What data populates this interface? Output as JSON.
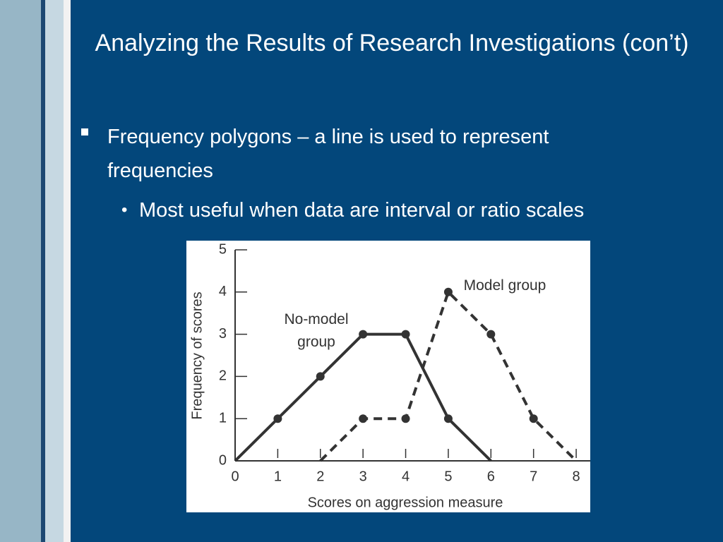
{
  "slide": {
    "title": "Analyzing the Results of Research Investigations (con’t)",
    "bullets": [
      {
        "text": "Frequency polygons – a line is used to represent frequencies",
        "sub": [
          "Most useful when data are interval or ratio scales"
        ]
      }
    ]
  },
  "chart_data": {
    "type": "line",
    "x_label": "Scores on aggression measure",
    "y_label": "Frequency of scores",
    "x": [
      0,
      1,
      2,
      3,
      4,
      5,
      6,
      7,
      8
    ],
    "series": [
      {
        "name": "No-model group",
        "color": "#333333",
        "style": "solid",
        "values": [
          0,
          1,
          2,
          3,
          3,
          1,
          0,
          null,
          null
        ]
      },
      {
        "name": "Model group",
        "color": "#333333",
        "style": "dashed",
        "values": [
          null,
          null,
          0,
          1,
          1,
          4,
          3,
          1,
          0
        ]
      }
    ],
    "xlim": [
      0,
      8.33
    ],
    "ylim": [
      0,
      5
    ],
    "xticks": [
      0,
      1,
      2,
      3,
      4,
      5,
      6,
      7,
      8
    ],
    "yticks": [
      0,
      1,
      2,
      3,
      4,
      5
    ]
  }
}
